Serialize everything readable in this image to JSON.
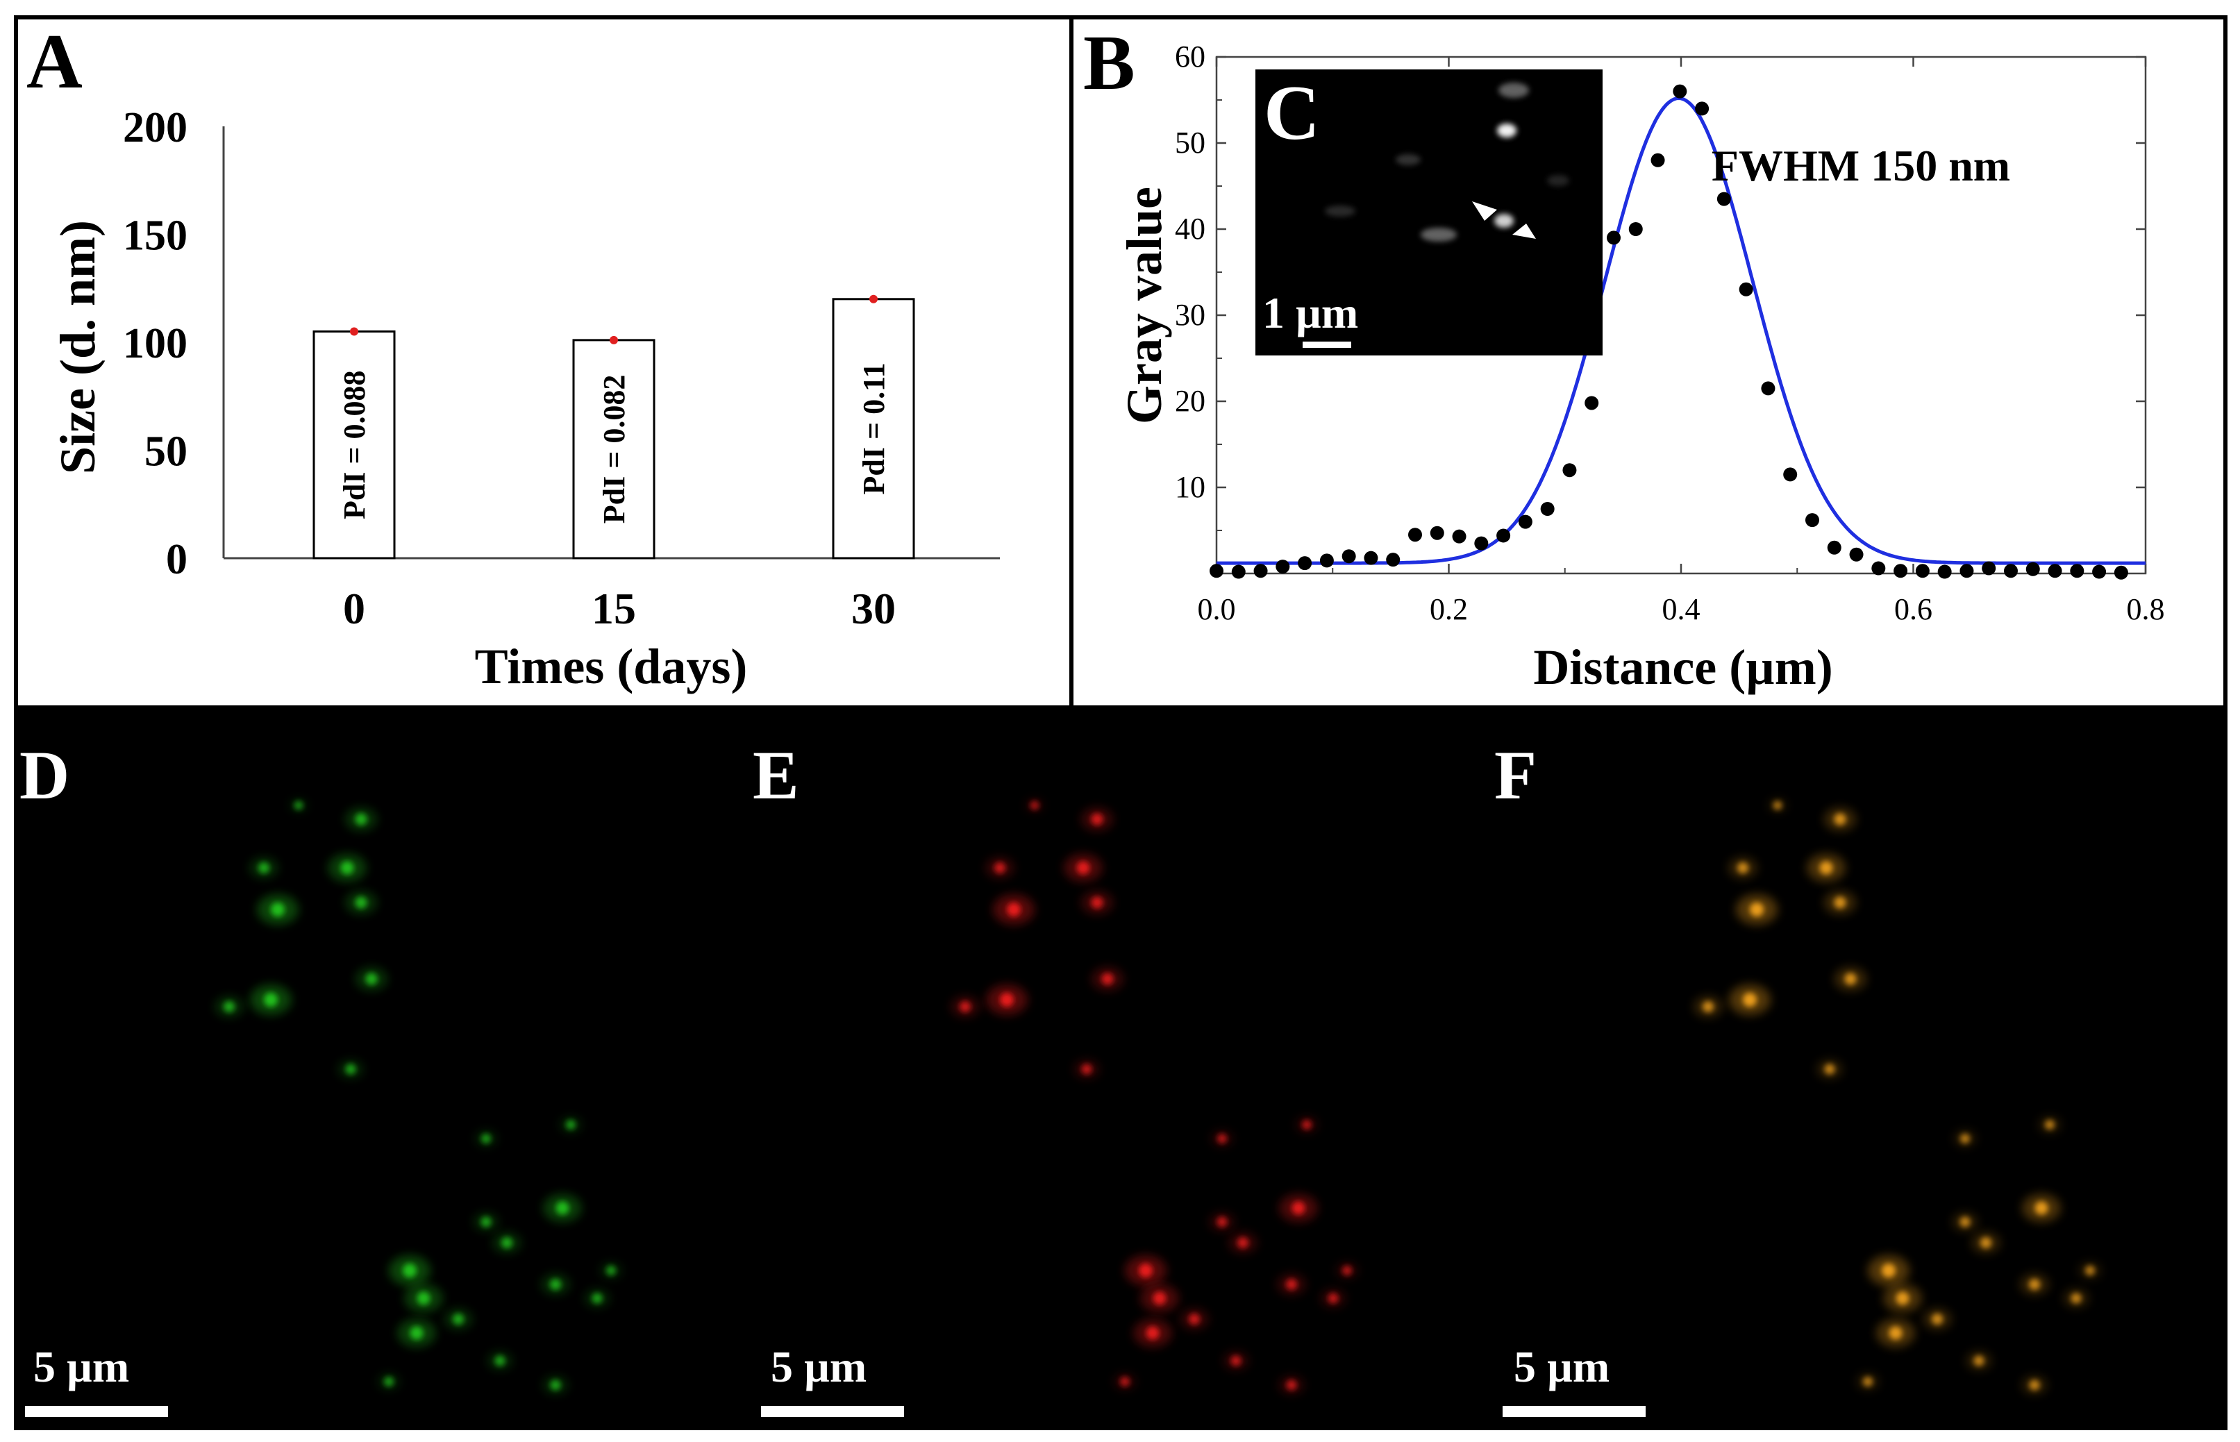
{
  "panels": {
    "A": {
      "label": "A",
      "chart_data": {
        "type": "bar",
        "title": "",
        "xlabel": "Times (days)",
        "ylabel": "Size (d. nm)",
        "categories": [
          "0",
          "15",
          "30"
        ],
        "values": [
          105,
          101,
          120
        ],
        "bar_annotations": [
          "PdI = 0.088",
          "PdI = 0.082",
          "PdI = 0.11"
        ],
        "yticks": [
          "0",
          "50",
          "100",
          "150",
          "200"
        ],
        "ylim": [
          0,
          200
        ],
        "grid": false
      }
    },
    "B": {
      "label": "B",
      "annotation": "FWHM 150 nm",
      "chart_data": {
        "type": "scatter",
        "title": "",
        "xlabel": "Distance (µm)",
        "ylabel": "Gray value",
        "xlim": [
          0,
          0.8
        ],
        "ylim": [
          0,
          60
        ],
        "xticks": [
          "0.0",
          "0.2",
          "0.4",
          "0.6",
          "0.8"
        ],
        "yticks": [
          "10",
          "20",
          "30",
          "40",
          "50",
          "60"
        ],
        "series": [
          {
            "name": "measured",
            "x": [
              0.0,
              0.019,
              0.038,
              0.057,
              0.076,
              0.095,
              0.114,
              0.133,
              0.152,
              0.171,
              0.19,
              0.209,
              0.228,
              0.247,
              0.266,
              0.285,
              0.304,
              0.323,
              0.342,
              0.361,
              0.38,
              0.399,
              0.418,
              0.437,
              0.456,
              0.475,
              0.494,
              0.513,
              0.532,
              0.551,
              0.57,
              0.589,
              0.608,
              0.627,
              0.646,
              0.665,
              0.684,
              0.703,
              0.722,
              0.741,
              0.76,
              0.779
            ],
            "y": [
              0.3,
              0.2,
              0.3,
              0.8,
              1.2,
              1.5,
              2.0,
              1.8,
              1.6,
              4.5,
              4.7,
              4.3,
              3.5,
              4.4,
              6.0,
              7.5,
              12.0,
              19.8,
              39.0,
              40.0,
              48.0,
              56.0,
              54.0,
              43.5,
              33.0,
              21.5,
              11.5,
              6.2,
              3.0,
              2.2,
              0.6,
              0.3,
              0.3,
              0.2,
              0.3,
              0.6,
              0.3,
              0.5,
              0.3,
              0.3,
              0.2,
              0.1
            ]
          },
          {
            "name": "gaussian fit",
            "type": "line",
            "color": "#1f2fe0",
            "baseline": 1.2,
            "amplitude": 54,
            "center": 0.398,
            "sigma": 0.0637
          }
        ]
      }
    },
    "C": {
      "label": "C",
      "scale_bar": "1 µm"
    },
    "D": {
      "label": "D",
      "scale_bar": "5 µm",
      "channel_color": "#22c41e"
    },
    "E": {
      "label": "E",
      "scale_bar": "5 µm",
      "channel_color": "#ee1c1c"
    },
    "F": {
      "label": "F",
      "scale_bar": "5 µm",
      "channel_color": "#f2a21a"
    }
  }
}
